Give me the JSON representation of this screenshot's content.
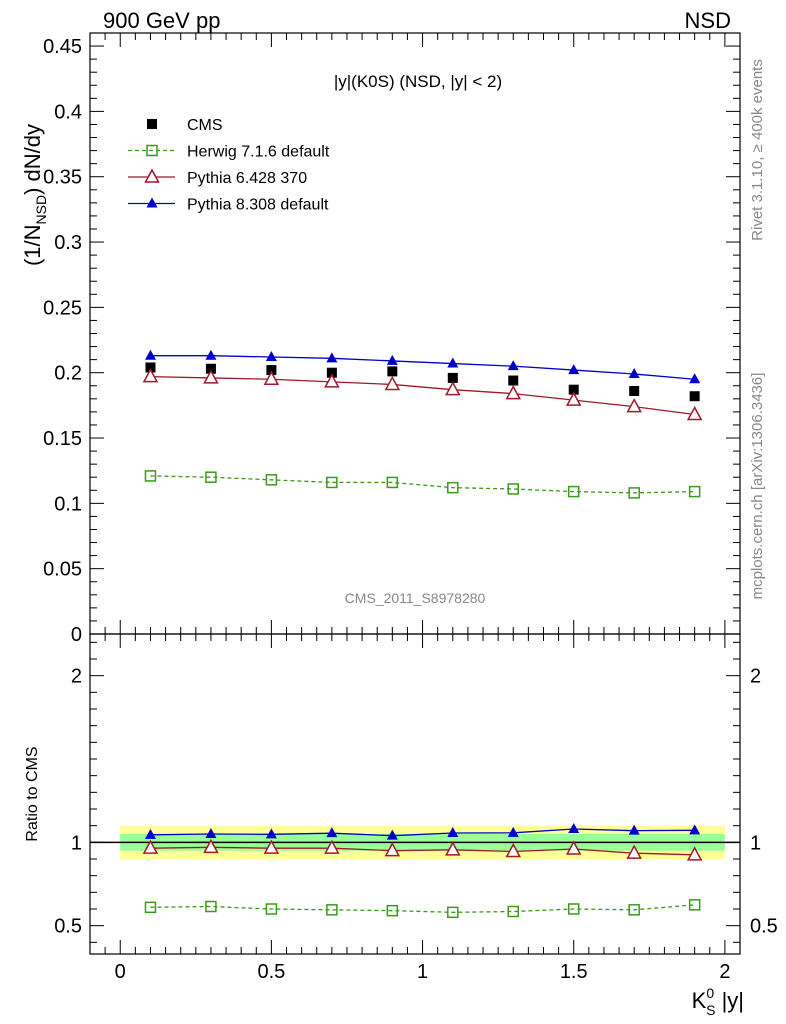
{
  "header": {
    "left": "900 GeV pp",
    "right": "NSD"
  },
  "side_text": {
    "rivet": "Rivet 3.1.10, ≥ 400k events",
    "mcplots": "mcplots.cern.ch [arXiv:1306.3436]"
  },
  "watermark": "CMS_2011_S8978280",
  "colors": {
    "cms": "#000000",
    "herwig": "#3a9a1a",
    "pythia6": "#a0182a",
    "pythia8": "#0000cc",
    "band_inner": "#99ff99",
    "band_outer": "#ffff99"
  },
  "chart_data": [
    {
      "type": "scatter",
      "title": "|y|(K0S) (NSD, |y| < 2)",
      "ylabel_main": "(1/N",
      "ylabel_sub": "NSD",
      "ylabel_tail": ") dN/dy",
      "xlim": [
        -0.1,
        2.05
      ],
      "ylim": [
        0,
        0.46
      ],
      "yticks": [
        {
          "v": 0,
          "label": "0"
        },
        {
          "v": 0.05,
          "label": "0.05"
        },
        {
          "v": 0.1,
          "label": "0.1"
        },
        {
          "v": 0.15,
          "label": "0.15"
        },
        {
          "v": 0.2,
          "label": "0.2"
        },
        {
          "v": 0.25,
          "label": "0.25"
        },
        {
          "v": 0.3,
          "label": "0.3"
        },
        {
          "v": 0.35,
          "label": "0.35"
        },
        {
          "v": 0.4,
          "label": "0.4"
        },
        {
          "v": 0.45,
          "label": "0.45"
        }
      ],
      "x": [
        0.1,
        0.3,
        0.5,
        0.7,
        0.9,
        1.1,
        1.3,
        1.5,
        1.7,
        1.9
      ],
      "series": [
        {
          "name": "CMS",
          "key": "cms",
          "marker": "square-filled",
          "line": "none",
          "values": [
            0.204,
            0.203,
            0.202,
            0.2,
            0.201,
            0.196,
            0.194,
            0.187,
            0.186,
            0.182
          ]
        },
        {
          "name": "Herwig 7.1.6 default",
          "key": "herwig",
          "marker": "square-open",
          "line": "dashed",
          "values": [
            0.121,
            0.12,
            0.118,
            0.116,
            0.116,
            0.112,
            0.111,
            0.109,
            0.108,
            0.109
          ]
        },
        {
          "name": "Pythia 6.428 370",
          "key": "pythia6",
          "marker": "triangle-open",
          "line": "solid",
          "values": [
            0.197,
            0.196,
            0.195,
            0.193,
            0.191,
            0.187,
            0.184,
            0.179,
            0.174,
            0.168
          ]
        },
        {
          "name": "Pythia 8.308 default",
          "key": "pythia8",
          "marker": "triangle-filled",
          "line": "solid",
          "values": [
            0.213,
            0.213,
            0.212,
            0.211,
            0.209,
            0.207,
            0.205,
            0.202,
            0.199,
            0.195
          ]
        }
      ],
      "legend": "top-left"
    },
    {
      "type": "line",
      "ylabel": "Ratio to CMS",
      "xlabel_main": "K",
      "xlabel_sup": "0",
      "xlabel_sub": "S",
      "xlabel_tail": " |y|",
      "xlim": [
        -0.1,
        2.05
      ],
      "ylim": [
        0.33,
        2.25
      ],
      "xticks": [
        {
          "v": 0,
          "label": "0"
        },
        {
          "v": 0.5,
          "label": "0.5"
        },
        {
          "v": 1,
          "label": "1"
        },
        {
          "v": 1.5,
          "label": "1.5"
        },
        {
          "v": 2,
          "label": "2"
        }
      ],
      "yticks": [
        {
          "v": 0.5,
          "label": "0.5"
        },
        {
          "v": 1,
          "label": "1"
        },
        {
          "v": 2,
          "label": "2"
        }
      ],
      "band_inner": [
        0.95,
        1.05
      ],
      "band_outer": [
        0.9,
        1.1
      ],
      "band_x": [
        0,
        2
      ],
      "x": [
        0.1,
        0.3,
        0.5,
        0.7,
        0.9,
        1.1,
        1.3,
        1.5,
        1.7,
        1.9
      ],
      "series": [
        {
          "name": "Herwig 7.1.6 default",
          "key": "herwig",
          "marker": "square-open",
          "line": "dashed",
          "values": [
            0.61,
            0.615,
            0.6,
            0.595,
            0.59,
            0.58,
            0.585,
            0.6,
            0.595,
            0.625
          ]
        },
        {
          "name": "Pythia 6.428 370",
          "key": "pythia6",
          "marker": "triangle-open",
          "line": "solid",
          "values": [
            0.965,
            0.97,
            0.965,
            0.965,
            0.95,
            0.955,
            0.945,
            0.96,
            0.935,
            0.925
          ]
        },
        {
          "name": "Pythia 8.308 default",
          "key": "pythia8",
          "marker": "triangle-filled",
          "line": "solid",
          "values": [
            1.045,
            1.05,
            1.048,
            1.055,
            1.04,
            1.056,
            1.057,
            1.08,
            1.07,
            1.072
          ]
        }
      ]
    }
  ]
}
